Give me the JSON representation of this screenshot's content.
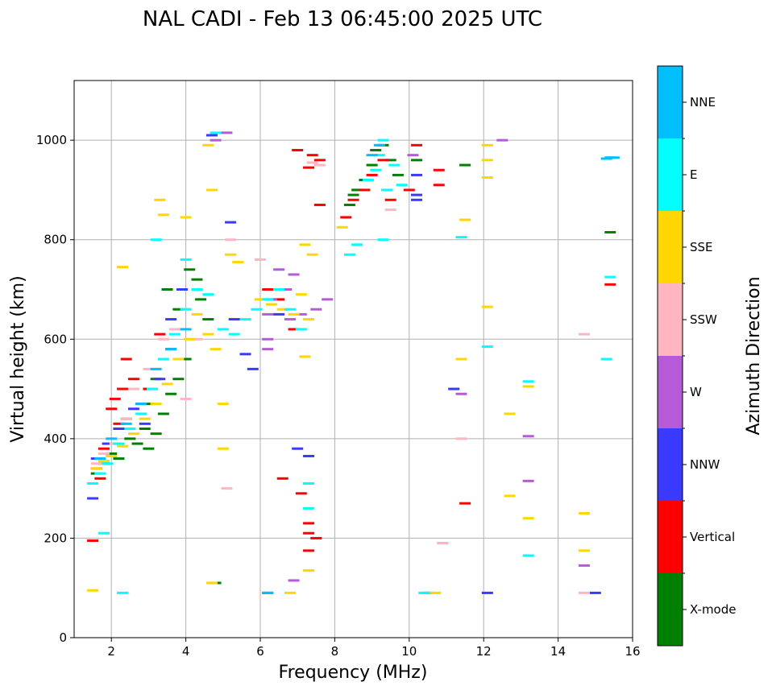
{
  "chart_data": {
    "type": "scatter",
    "title": "NAL CADI - Feb 13 06:45:00 2025 UTC",
    "xlabel": "Frequency (MHz)",
    "ylabel": "Virtual height (km)",
    "xlim": [
      1,
      16
    ],
    "ylim": [
      0,
      1120
    ],
    "xticks": [
      2,
      4,
      6,
      8,
      10,
      12,
      14,
      16
    ],
    "xtick_labels": [
      "2",
      "4",
      "6",
      "8",
      "10",
      "12",
      "14",
      "16"
    ],
    "yticks": [
      0,
      200,
      400,
      600,
      800,
      1000
    ],
    "ytick_labels": [
      "0",
      "200",
      "400",
      "600",
      "800",
      "1000"
    ],
    "grid": true,
    "colorbar": {
      "label": "Azimuth Direction",
      "categories": [
        "X-mode",
        "Vertical",
        "NNW",
        "W",
        "SSW",
        "SSE",
        "E",
        "NNE"
      ],
      "colors": [
        "#008000",
        "#ff0000",
        "#3a3aff",
        "#b65bd7",
        "#ffb6c1",
        "#ffd700",
        "#00ffff",
        "#00bfff"
      ]
    },
    "series": [
      {
        "name": "X-mode",
        "points": [
          [
            1.6,
            330
          ],
          [
            1.8,
            350
          ],
          [
            2.0,
            370
          ],
          [
            2.2,
            360
          ],
          [
            2.5,
            400
          ],
          [
            2.7,
            390
          ],
          [
            3.0,
            380
          ],
          [
            3.2,
            410
          ],
          [
            3.4,
            450
          ],
          [
            3.6,
            490
          ],
          [
            3.8,
            520
          ],
          [
            4.0,
            560
          ],
          [
            4.1,
            740
          ],
          [
            4.3,
            720
          ],
          [
            4.4,
            680
          ],
          [
            4.6,
            640
          ],
          [
            3.5,
            700
          ],
          [
            3.8,
            660
          ],
          [
            2.9,
            420
          ],
          [
            4.8,
            110
          ],
          [
            8.4,
            870
          ],
          [
            8.5,
            890
          ],
          [
            8.6,
            900
          ],
          [
            8.8,
            920
          ],
          [
            9.0,
            950
          ],
          [
            9.1,
            980
          ],
          [
            9.3,
            990
          ],
          [
            9.5,
            960
          ],
          [
            9.7,
            930
          ],
          [
            10.2,
            960
          ],
          [
            15.4,
            815
          ],
          [
            11.5,
            950
          ],
          [
            3.2,
            520
          ],
          [
            3.0,
            470
          ],
          [
            2.4,
            440
          ]
        ]
      },
      {
        "name": "Vertical",
        "points": [
          [
            1.6,
            340
          ],
          [
            1.7,
            320
          ],
          [
            1.8,
            380
          ],
          [
            2.0,
            460
          ],
          [
            2.1,
            480
          ],
          [
            2.2,
            430
          ],
          [
            2.3,
            500
          ],
          [
            2.4,
            560
          ],
          [
            2.6,
            520
          ],
          [
            2.8,
            470
          ],
          [
            3.0,
            500
          ],
          [
            3.3,
            610
          ],
          [
            3.6,
            580
          ],
          [
            1.5,
            195
          ],
          [
            6.6,
            320
          ],
          [
            7.1,
            290
          ],
          [
            7.3,
            230
          ],
          [
            7.3,
            210
          ],
          [
            7.5,
            200
          ],
          [
            7.4,
            970
          ],
          [
            7.6,
            960
          ],
          [
            7.3,
            945
          ],
          [
            7.6,
            870
          ],
          [
            8.3,
            845
          ],
          [
            8.5,
            880
          ],
          [
            8.8,
            900
          ],
          [
            9.0,
            930
          ],
          [
            9.3,
            960
          ],
          [
            9.5,
            880
          ],
          [
            10.0,
            900
          ],
          [
            10.2,
            990
          ],
          [
            10.8,
            940
          ],
          [
            10.8,
            910
          ],
          [
            11.5,
            270
          ],
          [
            15.4,
            710
          ],
          [
            6.2,
            700
          ],
          [
            6.5,
            680
          ],
          [
            6.9,
            620
          ],
          [
            7.0,
            980
          ],
          [
            7.3,
            175
          ]
        ]
      },
      {
        "name": "NNW",
        "points": [
          [
            1.6,
            360
          ],
          [
            1.9,
            390
          ],
          [
            2.2,
            420
          ],
          [
            2.6,
            460
          ],
          [
            2.9,
            430
          ],
          [
            3.3,
            520
          ],
          [
            3.6,
            640
          ],
          [
            3.9,
            700
          ],
          [
            4.7,
            1010
          ],
          [
            5.3,
            640
          ],
          [
            5.6,
            570
          ],
          [
            6.5,
            650
          ],
          [
            6.2,
            90
          ],
          [
            7.3,
            365
          ],
          [
            7.0,
            380
          ],
          [
            10.2,
            880
          ],
          [
            10.2,
            930
          ],
          [
            10.5,
            90
          ],
          [
            11.2,
            500
          ],
          [
            12.1,
            90
          ],
          [
            15.0,
            90
          ],
          [
            5.2,
            835
          ],
          [
            1.5,
            280
          ],
          [
            5.8,
            540
          ],
          [
            10.2,
            890
          ]
        ]
      },
      {
        "name": "W",
        "points": [
          [
            4.8,
            1000
          ],
          [
            5.1,
            1015
          ],
          [
            6.2,
            650
          ],
          [
            6.3,
            680
          ],
          [
            6.5,
            740
          ],
          [
            6.7,
            700
          ],
          [
            6.9,
            730
          ],
          [
            7.1,
            650
          ],
          [
            7.5,
            660
          ],
          [
            7.8,
            680
          ],
          [
            6.2,
            600
          ],
          [
            6.2,
            580
          ],
          [
            10.1,
            970
          ],
          [
            11.4,
            490
          ],
          [
            13.2,
            405
          ],
          [
            13.2,
            315
          ],
          [
            10.9,
            190
          ],
          [
            14.7,
            145
          ],
          [
            12.5,
            1000
          ],
          [
            6.9,
            115
          ],
          [
            6.8,
            640
          ]
        ]
      },
      {
        "name": "SSW",
        "points": [
          [
            1.6,
            350
          ],
          [
            1.8,
            370
          ],
          [
            2.1,
            390
          ],
          [
            2.4,
            440
          ],
          [
            2.6,
            500
          ],
          [
            3.0,
            540
          ],
          [
            3.4,
            600
          ],
          [
            3.7,
            620
          ],
          [
            4.0,
            480
          ],
          [
            4.3,
            600
          ],
          [
            5.1,
            300
          ],
          [
            7.4,
            955
          ],
          [
            7.6,
            950
          ],
          [
            9.5,
            860
          ],
          [
            11.4,
            400
          ],
          [
            14.7,
            610
          ],
          [
            14.7,
            90
          ],
          [
            10.9,
            190
          ],
          [
            5.2,
            800
          ],
          [
            6.0,
            760
          ]
        ]
      },
      {
        "name": "SSE",
        "points": [
          [
            1.6,
            340
          ],
          [
            1.8,
            355
          ],
          [
            2.0,
            365
          ],
          [
            2.3,
            385
          ],
          [
            2.6,
            410
          ],
          [
            2.9,
            440
          ],
          [
            3.2,
            470
          ],
          [
            3.5,
            510
          ],
          [
            3.8,
            560
          ],
          [
            4.1,
            600
          ],
          [
            4.3,
            650
          ],
          [
            4.6,
            610
          ],
          [
            4.8,
            580
          ],
          [
            3.3,
            880
          ],
          [
            3.4,
            850
          ],
          [
            4.0,
            845
          ],
          [
            4.7,
            900
          ],
          [
            4.6,
            990
          ],
          [
            5.2,
            770
          ],
          [
            6.0,
            680
          ],
          [
            6.3,
            670
          ],
          [
            6.6,
            660
          ],
          [
            6.9,
            650
          ],
          [
            7.1,
            690
          ],
          [
            7.3,
            640
          ],
          [
            7.4,
            770
          ],
          [
            7.2,
            790
          ],
          [
            7.2,
            565
          ],
          [
            8.2,
            825
          ],
          [
            11.5,
            840
          ],
          [
            12.1,
            990
          ],
          [
            12.1,
            925
          ],
          [
            12.1,
            960
          ],
          [
            12.1,
            665
          ],
          [
            11.4,
            560
          ],
          [
            12.7,
            450
          ],
          [
            12.7,
            285
          ],
          [
            13.2,
            240
          ],
          [
            13.2,
            505
          ],
          [
            14.7,
            250
          ],
          [
            14.7,
            175
          ],
          [
            2.3,
            745
          ],
          [
            1.5,
            95
          ],
          [
            6.8,
            90
          ],
          [
            10.7,
            90
          ],
          [
            4.7,
            110
          ],
          [
            5.4,
            755
          ],
          [
            7.3,
            135
          ],
          [
            5.0,
            380
          ],
          [
            5.0,
            470
          ]
        ]
      },
      {
        "name": "E",
        "points": [
          [
            1.5,
            310
          ],
          [
            1.7,
            330
          ],
          [
            1.9,
            350
          ],
          [
            2.2,
            390
          ],
          [
            2.5,
            420
          ],
          [
            2.8,
            450
          ],
          [
            3.1,
            500
          ],
          [
            3.4,
            560
          ],
          [
            3.7,
            610
          ],
          [
            4.0,
            660
          ],
          [
            4.3,
            700
          ],
          [
            4.6,
            690
          ],
          [
            5.0,
            620
          ],
          [
            5.3,
            610
          ],
          [
            5.6,
            640
          ],
          [
            5.9,
            660
          ],
          [
            6.2,
            680
          ],
          [
            6.5,
            700
          ],
          [
            6.8,
            660
          ],
          [
            7.1,
            620
          ],
          [
            7.3,
            310
          ],
          [
            7.3,
            260
          ],
          [
            8.4,
            770
          ],
          [
            8.6,
            790
          ],
          [
            8.9,
            920
          ],
          [
            9.1,
            940
          ],
          [
            9.2,
            970
          ],
          [
            9.3,
            1000
          ],
          [
            9.4,
            900
          ],
          [
            9.6,
            950
          ],
          [
            9.8,
            910
          ],
          [
            9.3,
            800
          ],
          [
            11.4,
            805
          ],
          [
            12.1,
            585
          ],
          [
            13.2,
            515
          ],
          [
            13.2,
            165
          ],
          [
            15.3,
            560
          ],
          [
            15.4,
            725
          ],
          [
            4.8,
            1015
          ],
          [
            10.4,
            90
          ],
          [
            2.3,
            90
          ],
          [
            1.8,
            210
          ],
          [
            3.2,
            800
          ],
          [
            4.0,
            760
          ]
        ]
      },
      {
        "name": "NNE",
        "points": [
          [
            1.7,
            360
          ],
          [
            2.0,
            400
          ],
          [
            2.4,
            430
          ],
          [
            2.8,
            470
          ],
          [
            3.2,
            540
          ],
          [
            3.6,
            580
          ],
          [
            4.0,
            620
          ],
          [
            6.2,
            90
          ],
          [
            9.0,
            970
          ],
          [
            9.2,
            990
          ],
          [
            15.4,
            965
          ],
          [
            15.3,
            963
          ],
          [
            15.5,
            965
          ]
        ]
      }
    ]
  }
}
